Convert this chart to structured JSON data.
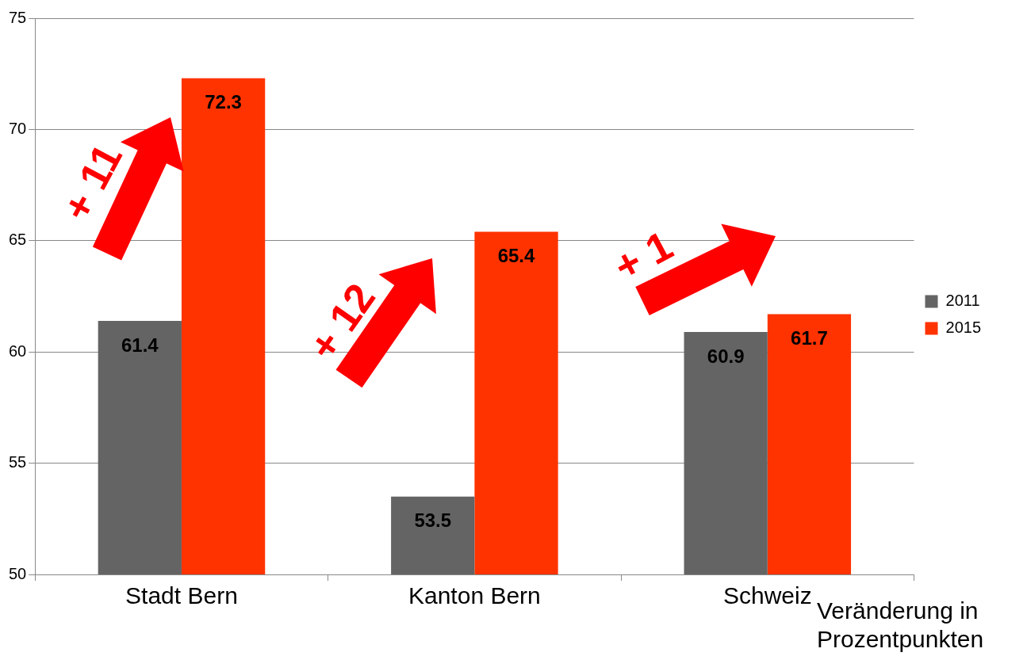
{
  "chart_data": {
    "type": "bar",
    "categories": [
      "Stadt Bern",
      "Kanton Bern",
      "Schweiz"
    ],
    "series": [
      {
        "name": "2011",
        "color": "#646464",
        "values": [
          61.4,
          53.5,
          60.9
        ]
      },
      {
        "name": "2015",
        "color": "#ff3300",
        "values": [
          72.3,
          65.4,
          61.7
        ]
      }
    ],
    "ylim": [
      50,
      75
    ],
    "yticks": [
      50,
      55,
      60,
      65,
      70,
      75
    ],
    "grid": "y",
    "legend": "right",
    "data_labels": true,
    "annotations": [
      "+ 11",
      "+ 12",
      "+ 1",
      "Veränderung in Prozentpunkten"
    ]
  }
}
